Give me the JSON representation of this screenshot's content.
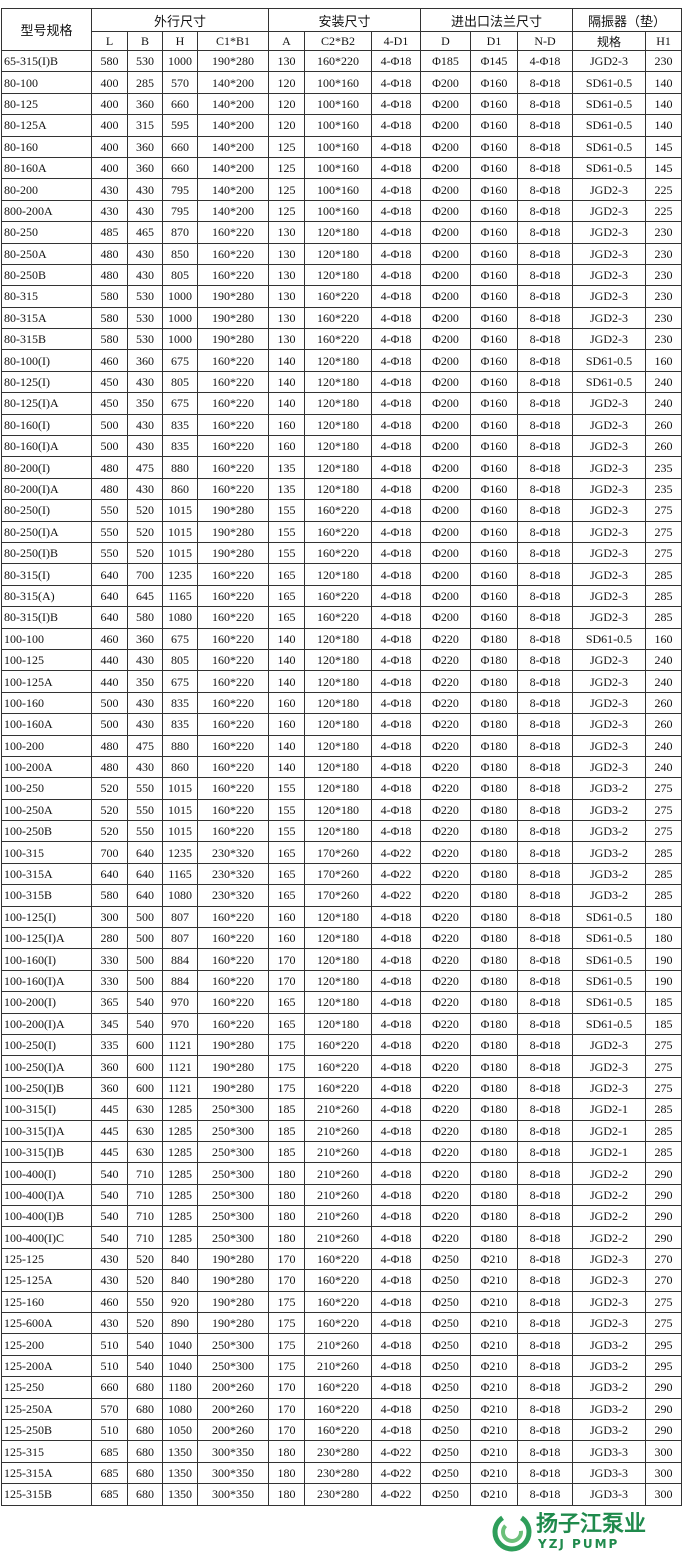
{
  "table": {
    "header": {
      "model": "型号规格",
      "groups": [
        "外行尺寸",
        "安装尺寸",
        "进出口法兰尺寸",
        "隔振器（垫）"
      ],
      "columns": [
        "L",
        "B",
        "H",
        "C1*B1",
        "A",
        "C2*B2",
        "4-D1",
        "D",
        "D1",
        "N-D",
        "规格",
        "H1"
      ]
    },
    "rows": [
      [
        "65-315(I)B",
        "580",
        "530",
        "1000",
        "190*280",
        "130",
        "160*220",
        "4-Φ18",
        "Φ185",
        "Φ145",
        "4-Φ18",
        "JGD2-3",
        "230"
      ],
      [
        "80-100",
        "400",
        "285",
        "570",
        "140*200",
        "120",
        "100*160",
        "4-Φ18",
        "Φ200",
        "Φ160",
        "8-Φ18",
        "SD61-0.5",
        "140"
      ],
      [
        "80-125",
        "400",
        "360",
        "660",
        "140*200",
        "120",
        "100*160",
        "4-Φ18",
        "Φ200",
        "Φ160",
        "8-Φ18",
        "SD61-0.5",
        "140"
      ],
      [
        "80-125A",
        "400",
        "315",
        "595",
        "140*200",
        "120",
        "100*160",
        "4-Φ18",
        "Φ200",
        "Φ160",
        "8-Φ18",
        "SD61-0.5",
        "140"
      ],
      [
        "80-160",
        "400",
        "360",
        "660",
        "140*200",
        "125",
        "100*160",
        "4-Φ18",
        "Φ200",
        "Φ160",
        "8-Φ18",
        "SD61-0.5",
        "145"
      ],
      [
        "80-160A",
        "400",
        "360",
        "660",
        "140*200",
        "125",
        "100*160",
        "4-Φ18",
        "Φ200",
        "Φ160",
        "8-Φ18",
        "SD61-0.5",
        "145"
      ],
      [
        "80-200",
        "430",
        "430",
        "795",
        "140*200",
        "125",
        "100*160",
        "4-Φ18",
        "Φ200",
        "Φ160",
        "8-Φ18",
        "JGD2-3",
        "225"
      ],
      [
        "800-200A",
        "430",
        "430",
        "795",
        "140*200",
        "125",
        "100*160",
        "4-Φ18",
        "Φ200",
        "Φ160",
        "8-Φ18",
        "JGD2-3",
        "225"
      ],
      [
        "80-250",
        "485",
        "465",
        "870",
        "160*220",
        "130",
        "120*180",
        "4-Φ18",
        "Φ200",
        "Φ160",
        "8-Φ18",
        "JGD2-3",
        "230"
      ],
      [
        "80-250A",
        "480",
        "430",
        "850",
        "160*220",
        "130",
        "120*180",
        "4-Φ18",
        "Φ200",
        "Φ160",
        "8-Φ18",
        "JGD2-3",
        "230"
      ],
      [
        "80-250B",
        "480",
        "430",
        "805",
        "160*220",
        "130",
        "120*180",
        "4-Φ18",
        "Φ200",
        "Φ160",
        "8-Φ18",
        "JGD2-3",
        "230"
      ],
      [
        "80-315",
        "580",
        "530",
        "1000",
        "190*280",
        "130",
        "160*220",
        "4-Φ18",
        "Φ200",
        "Φ160",
        "8-Φ18",
        "JGD2-3",
        "230"
      ],
      [
        "80-315A",
        "580",
        "530",
        "1000",
        "190*280",
        "130",
        "160*220",
        "4-Φ18",
        "Φ200",
        "Φ160",
        "8-Φ18",
        "JGD2-3",
        "230"
      ],
      [
        "80-315B",
        "580",
        "530",
        "1000",
        "190*280",
        "130",
        "160*220",
        "4-Φ18",
        "Φ200",
        "Φ160",
        "8-Φ18",
        "JGD2-3",
        "230"
      ],
      [
        "80-100(I)",
        "460",
        "360",
        "675",
        "160*220",
        "140",
        "120*180",
        "4-Φ18",
        "Φ200",
        "Φ160",
        "8-Φ18",
        "SD61-0.5",
        "160"
      ],
      [
        "80-125(I)",
        "450",
        "430",
        "805",
        "160*220",
        "140",
        "120*180",
        "4-Φ18",
        "Φ200",
        "Φ160",
        "8-Φ18",
        "SD61-0.5",
        "240"
      ],
      [
        "80-125(I)A",
        "450",
        "350",
        "675",
        "160*220",
        "140",
        "120*180",
        "4-Φ18",
        "Φ200",
        "Φ160",
        "8-Φ18",
        "JGD2-3",
        "240"
      ],
      [
        "80-160(I)",
        "500",
        "430",
        "835",
        "160*220",
        "160",
        "120*180",
        "4-Φ18",
        "Φ200",
        "Φ160",
        "8-Φ18",
        "JGD2-3",
        "260"
      ],
      [
        "80-160(I)A",
        "500",
        "430",
        "835",
        "160*220",
        "160",
        "120*180",
        "4-Φ18",
        "Φ200",
        "Φ160",
        "8-Φ18",
        "JGD2-3",
        "260"
      ],
      [
        "80-200(I)",
        "480",
        "475",
        "880",
        "160*220",
        "135",
        "120*180",
        "4-Φ18",
        "Φ200",
        "Φ160",
        "8-Φ18",
        "JGD2-3",
        "235"
      ],
      [
        "80-200(I)A",
        "480",
        "430",
        "860",
        "160*220",
        "135",
        "120*180",
        "4-Φ18",
        "Φ200",
        "Φ160",
        "8-Φ18",
        "JGD2-3",
        "235"
      ],
      [
        "80-250(I)",
        "550",
        "520",
        "1015",
        "190*280",
        "155",
        "160*220",
        "4-Φ18",
        "Φ200",
        "Φ160",
        "8-Φ18",
        "JGD2-3",
        "275"
      ],
      [
        "80-250(I)A",
        "550",
        "520",
        "1015",
        "190*280",
        "155",
        "160*220",
        "4-Φ18",
        "Φ200",
        "Φ160",
        "8-Φ18",
        "JGD2-3",
        "275"
      ],
      [
        "80-250(I)B",
        "550",
        "520",
        "1015",
        "190*280",
        "155",
        "160*220",
        "4-Φ18",
        "Φ200",
        "Φ160",
        "8-Φ18",
        "JGD2-3",
        "275"
      ],
      [
        "80-315(I)",
        "640",
        "700",
        "1235",
        "160*220",
        "165",
        "120*180",
        "4-Φ18",
        "Φ200",
        "Φ160",
        "8-Φ18",
        "JGD2-3",
        "285"
      ],
      [
        "80-315(A)",
        "640",
        "645",
        "1165",
        "160*220",
        "165",
        "160*220",
        "4-Φ18",
        "Φ200",
        "Φ160",
        "8-Φ18",
        "JGD2-3",
        "285"
      ],
      [
        "80-315(I)B",
        "640",
        "580",
        "1080",
        "160*220",
        "165",
        "160*220",
        "4-Φ18",
        "Φ200",
        "Φ160",
        "8-Φ18",
        "JGD2-3",
        "285"
      ],
      [
        "100-100",
        "460",
        "360",
        "675",
        "160*220",
        "140",
        "120*180",
        "4-Φ18",
        "Φ220",
        "Φ180",
        "8-Φ18",
        "SD61-0.5",
        "160"
      ],
      [
        "100-125",
        "440",
        "430",
        "805",
        "160*220",
        "140",
        "120*180",
        "4-Φ18",
        "Φ220",
        "Φ180",
        "8-Φ18",
        "JGD2-3",
        "240"
      ],
      [
        "100-125A",
        "440",
        "350",
        "675",
        "160*220",
        "140",
        "120*180",
        "4-Φ18",
        "Φ220",
        "Φ180",
        "8-Φ18",
        "JGD2-3",
        "240"
      ],
      [
        "100-160",
        "500",
        "430",
        "835",
        "160*220",
        "160",
        "120*180",
        "4-Φ18",
        "Φ220",
        "Φ180",
        "8-Φ18",
        "JGD2-3",
        "260"
      ],
      [
        "100-160A",
        "500",
        "430",
        "835",
        "160*220",
        "160",
        "120*180",
        "4-Φ18",
        "Φ220",
        "Φ180",
        "8-Φ18",
        "JGD2-3",
        "260"
      ],
      [
        "100-200",
        "480",
        "475",
        "880",
        "160*220",
        "140",
        "120*180",
        "4-Φ18",
        "Φ220",
        "Φ180",
        "8-Φ18",
        "JGD2-3",
        "240"
      ],
      [
        "100-200A",
        "480",
        "430",
        "860",
        "160*220",
        "140",
        "120*180",
        "4-Φ18",
        "Φ220",
        "Φ180",
        "8-Φ18",
        "JGD2-3",
        "240"
      ],
      [
        "100-250",
        "520",
        "550",
        "1015",
        "160*220",
        "155",
        "120*180",
        "4-Φ18",
        "Φ220",
        "Φ180",
        "8-Φ18",
        "JGD3-2",
        "275"
      ],
      [
        "100-250A",
        "520",
        "550",
        "1015",
        "160*220",
        "155",
        "120*180",
        "4-Φ18",
        "Φ220",
        "Φ180",
        "8-Φ18",
        "JGD3-2",
        "275"
      ],
      [
        "100-250B",
        "520",
        "550",
        "1015",
        "160*220",
        "155",
        "120*180",
        "4-Φ18",
        "Φ220",
        "Φ180",
        "8-Φ18",
        "JGD3-2",
        "275"
      ],
      [
        "100-315",
        "700",
        "640",
        "1235",
        "230*320",
        "165",
        "170*260",
        "4-Φ22",
        "Φ220",
        "Φ180",
        "8-Φ18",
        "JGD3-2",
        "285"
      ],
      [
        "100-315A",
        "640",
        "640",
        "1165",
        "230*320",
        "165",
        "170*260",
        "4-Φ22",
        "Φ220",
        "Φ180",
        "8-Φ18",
        "JGD3-2",
        "285"
      ],
      [
        "100-315B",
        "580",
        "640",
        "1080",
        "230*320",
        "165",
        "170*260",
        "4-Φ22",
        "Φ220",
        "Φ180",
        "8-Φ18",
        "JGD3-2",
        "285"
      ],
      [
        "100-125(I)",
        "300",
        "500",
        "807",
        "160*220",
        "160",
        "120*180",
        "4-Φ18",
        "Φ220",
        "Φ180",
        "8-Φ18",
        "SD61-0.5",
        "180"
      ],
      [
        "100-125(I)A",
        "280",
        "500",
        "807",
        "160*220",
        "160",
        "120*180",
        "4-Φ18",
        "Φ220",
        "Φ180",
        "8-Φ18",
        "SD61-0.5",
        "180"
      ],
      [
        "100-160(I)",
        "330",
        "500",
        "884",
        "160*220",
        "170",
        "120*180",
        "4-Φ18",
        "Φ220",
        "Φ180",
        "8-Φ18",
        "SD61-0.5",
        "190"
      ],
      [
        "100-160(I)A",
        "330",
        "500",
        "884",
        "160*220",
        "170",
        "120*180",
        "4-Φ18",
        "Φ220",
        "Φ180",
        "8-Φ18",
        "SD61-0.5",
        "190"
      ],
      [
        "100-200(I)",
        "365",
        "540",
        "970",
        "160*220",
        "165",
        "120*180",
        "4-Φ18",
        "Φ220",
        "Φ180",
        "8-Φ18",
        "SD61-0.5",
        "185"
      ],
      [
        "100-200(I)A",
        "345",
        "540",
        "970",
        "160*220",
        "165",
        "120*180",
        "4-Φ18",
        "Φ220",
        "Φ180",
        "8-Φ18",
        "SD61-0.5",
        "185"
      ],
      [
        "100-250(I)",
        "335",
        "600",
        "1121",
        "190*280",
        "175",
        "160*220",
        "4-Φ18",
        "Φ220",
        "Φ180",
        "8-Φ18",
        "JGD2-3",
        "275"
      ],
      [
        "100-250(I)A",
        "360",
        "600",
        "1121",
        "190*280",
        "175",
        "160*220",
        "4-Φ18",
        "Φ220",
        "Φ180",
        "8-Φ18",
        "JGD2-3",
        "275"
      ],
      [
        "100-250(I)B",
        "360",
        "600",
        "1121",
        "190*280",
        "175",
        "160*220",
        "4-Φ18",
        "Φ220",
        "Φ180",
        "8-Φ18",
        "JGD2-3",
        "275"
      ],
      [
        "100-315(I)",
        "445",
        "630",
        "1285",
        "250*300",
        "185",
        "210*260",
        "4-Φ18",
        "Φ220",
        "Φ180",
        "8-Φ18",
        "JGD2-1",
        "285"
      ],
      [
        "100-315(I)A",
        "445",
        "630",
        "1285",
        "250*300",
        "185",
        "210*260",
        "4-Φ18",
        "Φ220",
        "Φ180",
        "8-Φ18",
        "JGD2-1",
        "285"
      ],
      [
        "100-315(I)B",
        "445",
        "630",
        "1285",
        "250*300",
        "185",
        "210*260",
        "4-Φ18",
        "Φ220",
        "Φ180",
        "8-Φ18",
        "JGD2-1",
        "285"
      ],
      [
        "100-400(I)",
        "540",
        "710",
        "1285",
        "250*300",
        "180",
        "210*260",
        "4-Φ18",
        "Φ220",
        "Φ180",
        "8-Φ18",
        "JGD2-2",
        "290"
      ],
      [
        "100-400(I)A",
        "540",
        "710",
        "1285",
        "250*300",
        "180",
        "210*260",
        "4-Φ18",
        "Φ220",
        "Φ180",
        "8-Φ18",
        "JGD2-2",
        "290"
      ],
      [
        "100-400(I)B",
        "540",
        "710",
        "1285",
        "250*300",
        "180",
        "210*260",
        "4-Φ18",
        "Φ220",
        "Φ180",
        "8-Φ18",
        "JGD2-2",
        "290"
      ],
      [
        "100-400(I)C",
        "540",
        "710",
        "1285",
        "250*300",
        "180",
        "210*260",
        "4-Φ18",
        "Φ220",
        "Φ180",
        "8-Φ18",
        "JGD2-2",
        "290"
      ],
      [
        "125-125",
        "430",
        "520",
        "840",
        "190*280",
        "170",
        "160*220",
        "4-Φ18",
        "Φ250",
        "Φ210",
        "8-Φ18",
        "JGD2-3",
        "270"
      ],
      [
        "125-125A",
        "430",
        "520",
        "840",
        "190*280",
        "170",
        "160*220",
        "4-Φ18",
        "Φ250",
        "Φ210",
        "8-Φ18",
        "JGD2-3",
        "270"
      ],
      [
        "125-160",
        "460",
        "550",
        "920",
        "190*280",
        "175",
        "160*220",
        "4-Φ18",
        "Φ250",
        "Φ210",
        "8-Φ18",
        "JGD2-3",
        "275"
      ],
      [
        "125-600A",
        "430",
        "520",
        "890",
        "190*280",
        "175",
        "160*220",
        "4-Φ18",
        "Φ250",
        "Φ210",
        "8-Φ18",
        "JGD2-3",
        "275"
      ],
      [
        "125-200",
        "510",
        "540",
        "1040",
        "250*300",
        "175",
        "210*260",
        "4-Φ18",
        "Φ250",
        "Φ210",
        "8-Φ18",
        "JGD3-2",
        "295"
      ],
      [
        "125-200A",
        "510",
        "540",
        "1040",
        "250*300",
        "175",
        "210*260",
        "4-Φ18",
        "Φ250",
        "Φ210",
        "8-Φ18",
        "JGD3-2",
        "295"
      ],
      [
        "125-250",
        "660",
        "680",
        "1180",
        "200*260",
        "170",
        "160*220",
        "4-Φ18",
        "Φ250",
        "Φ210",
        "8-Φ18",
        "JGD3-2",
        "290"
      ],
      [
        "125-250A",
        "570",
        "680",
        "1080",
        "200*260",
        "170",
        "160*220",
        "4-Φ18",
        "Φ250",
        "Φ210",
        "8-Φ18",
        "JGD3-2",
        "290"
      ],
      [
        "125-250B",
        "510",
        "680",
        "1050",
        "200*260",
        "170",
        "160*220",
        "4-Φ18",
        "Φ250",
        "Φ210",
        "8-Φ18",
        "JGD3-2",
        "290"
      ],
      [
        "125-315",
        "685",
        "680",
        "1350",
        "300*350",
        "180",
        "230*280",
        "4-Φ22",
        "Φ250",
        "Φ210",
        "8-Φ18",
        "JGD3-3",
        "300"
      ],
      [
        "125-315A",
        "685",
        "680",
        "1350",
        "300*350",
        "180",
        "230*280",
        "4-Φ22",
        "Φ250",
        "Φ210",
        "8-Φ18",
        "JGD3-3",
        "300"
      ],
      [
        "125-315B",
        "685",
        "680",
        "1350",
        "300*350",
        "180",
        "230*280",
        "4-Φ22",
        "Φ250",
        "Φ210",
        "8-Φ18",
        "JGD3-3",
        "300"
      ]
    ]
  },
  "brand": {
    "name": "扬子江泵业",
    "en": "YZJ PUMP"
  }
}
